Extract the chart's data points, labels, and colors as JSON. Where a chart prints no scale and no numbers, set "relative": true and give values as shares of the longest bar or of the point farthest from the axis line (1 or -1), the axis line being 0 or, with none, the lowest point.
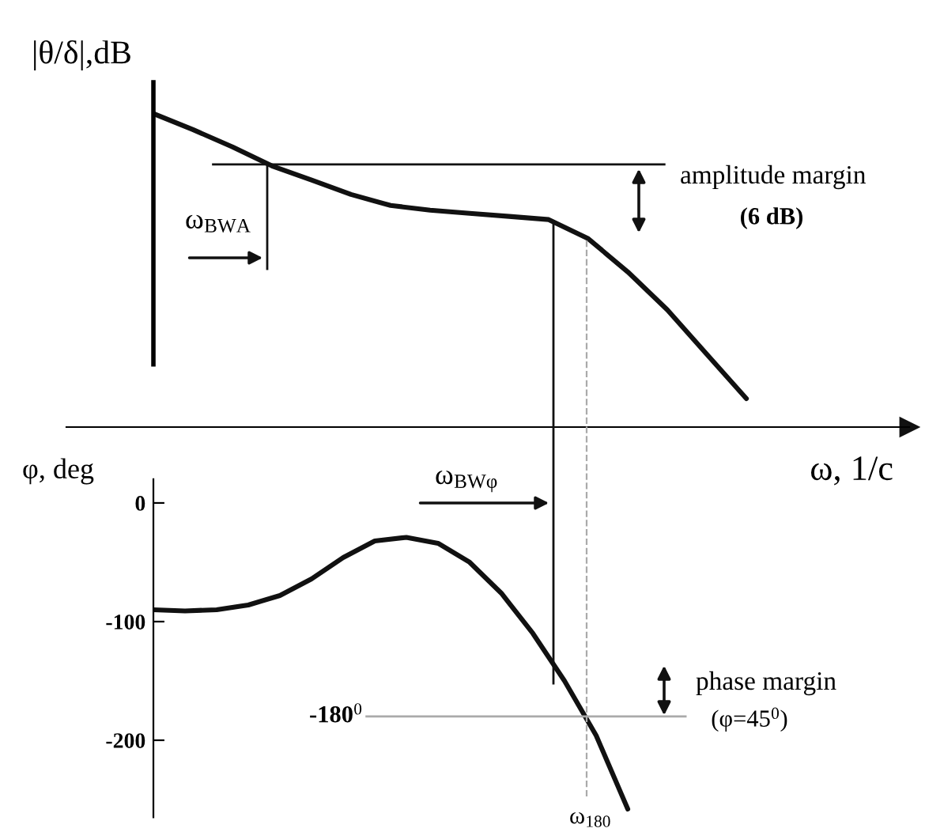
{
  "chart_data": [
    {
      "type": "line",
      "relative": true,
      "ylabel": "|θ/δ|,dB",
      "xlabel": "ω, 1/c",
      "color": "#111111",
      "categories": [
        null,
        null,
        null,
        null,
        null,
        null,
        null,
        null,
        null,
        null,
        null,
        null,
        null,
        null,
        null,
        null
      ],
      "values": [
        1.0,
        0.949,
        0.894,
        0.833,
        0.788,
        0.742,
        0.707,
        0.692,
        0.682,
        0.672,
        0.662,
        0.601,
        0.495,
        0.374,
        0.232,
        0.091
      ],
      "ref_lines": [
        {
          "axis": "y",
          "value": 0.838,
          "label": null,
          "color": "#111111",
          "line_style": "solid"
        }
      ],
      "annotations": [
        "ω$_{BWA}$",
        "amplitude margin",
        "(6 dB)"
      ],
      "tick_labels": false,
      "grid": false
    },
    {
      "type": "line",
      "ylabel": "φ, deg",
      "color": "#111111",
      "categories": [
        null,
        null,
        null,
        null,
        null,
        null,
        null,
        null,
        null,
        null,
        null,
        null,
        null,
        null,
        null,
        null
      ],
      "values": [
        -90,
        -91,
        -90,
        -86,
        -78,
        -64,
        -46,
        -32,
        -29,
        -34,
        -50,
        -76,
        -110,
        -150,
        -196,
        -258
      ],
      "ylim": [
        -265,
        20
      ],
      "yticks": [
        0,
        -100,
        -200
      ],
      "ref_lines": [
        {
          "axis": "y",
          "value": -180,
          "label": "-180$^{0}$",
          "color": "#aaaaaa",
          "line_style": "solid"
        }
      ],
      "annotations": [
        "ω$_{BWφ}$",
        "ω$_{180}$",
        "phase margin",
        "(φ=45$^{0}$)"
      ],
      "tick_labels": "y",
      "grid": false
    }
  ]
}
